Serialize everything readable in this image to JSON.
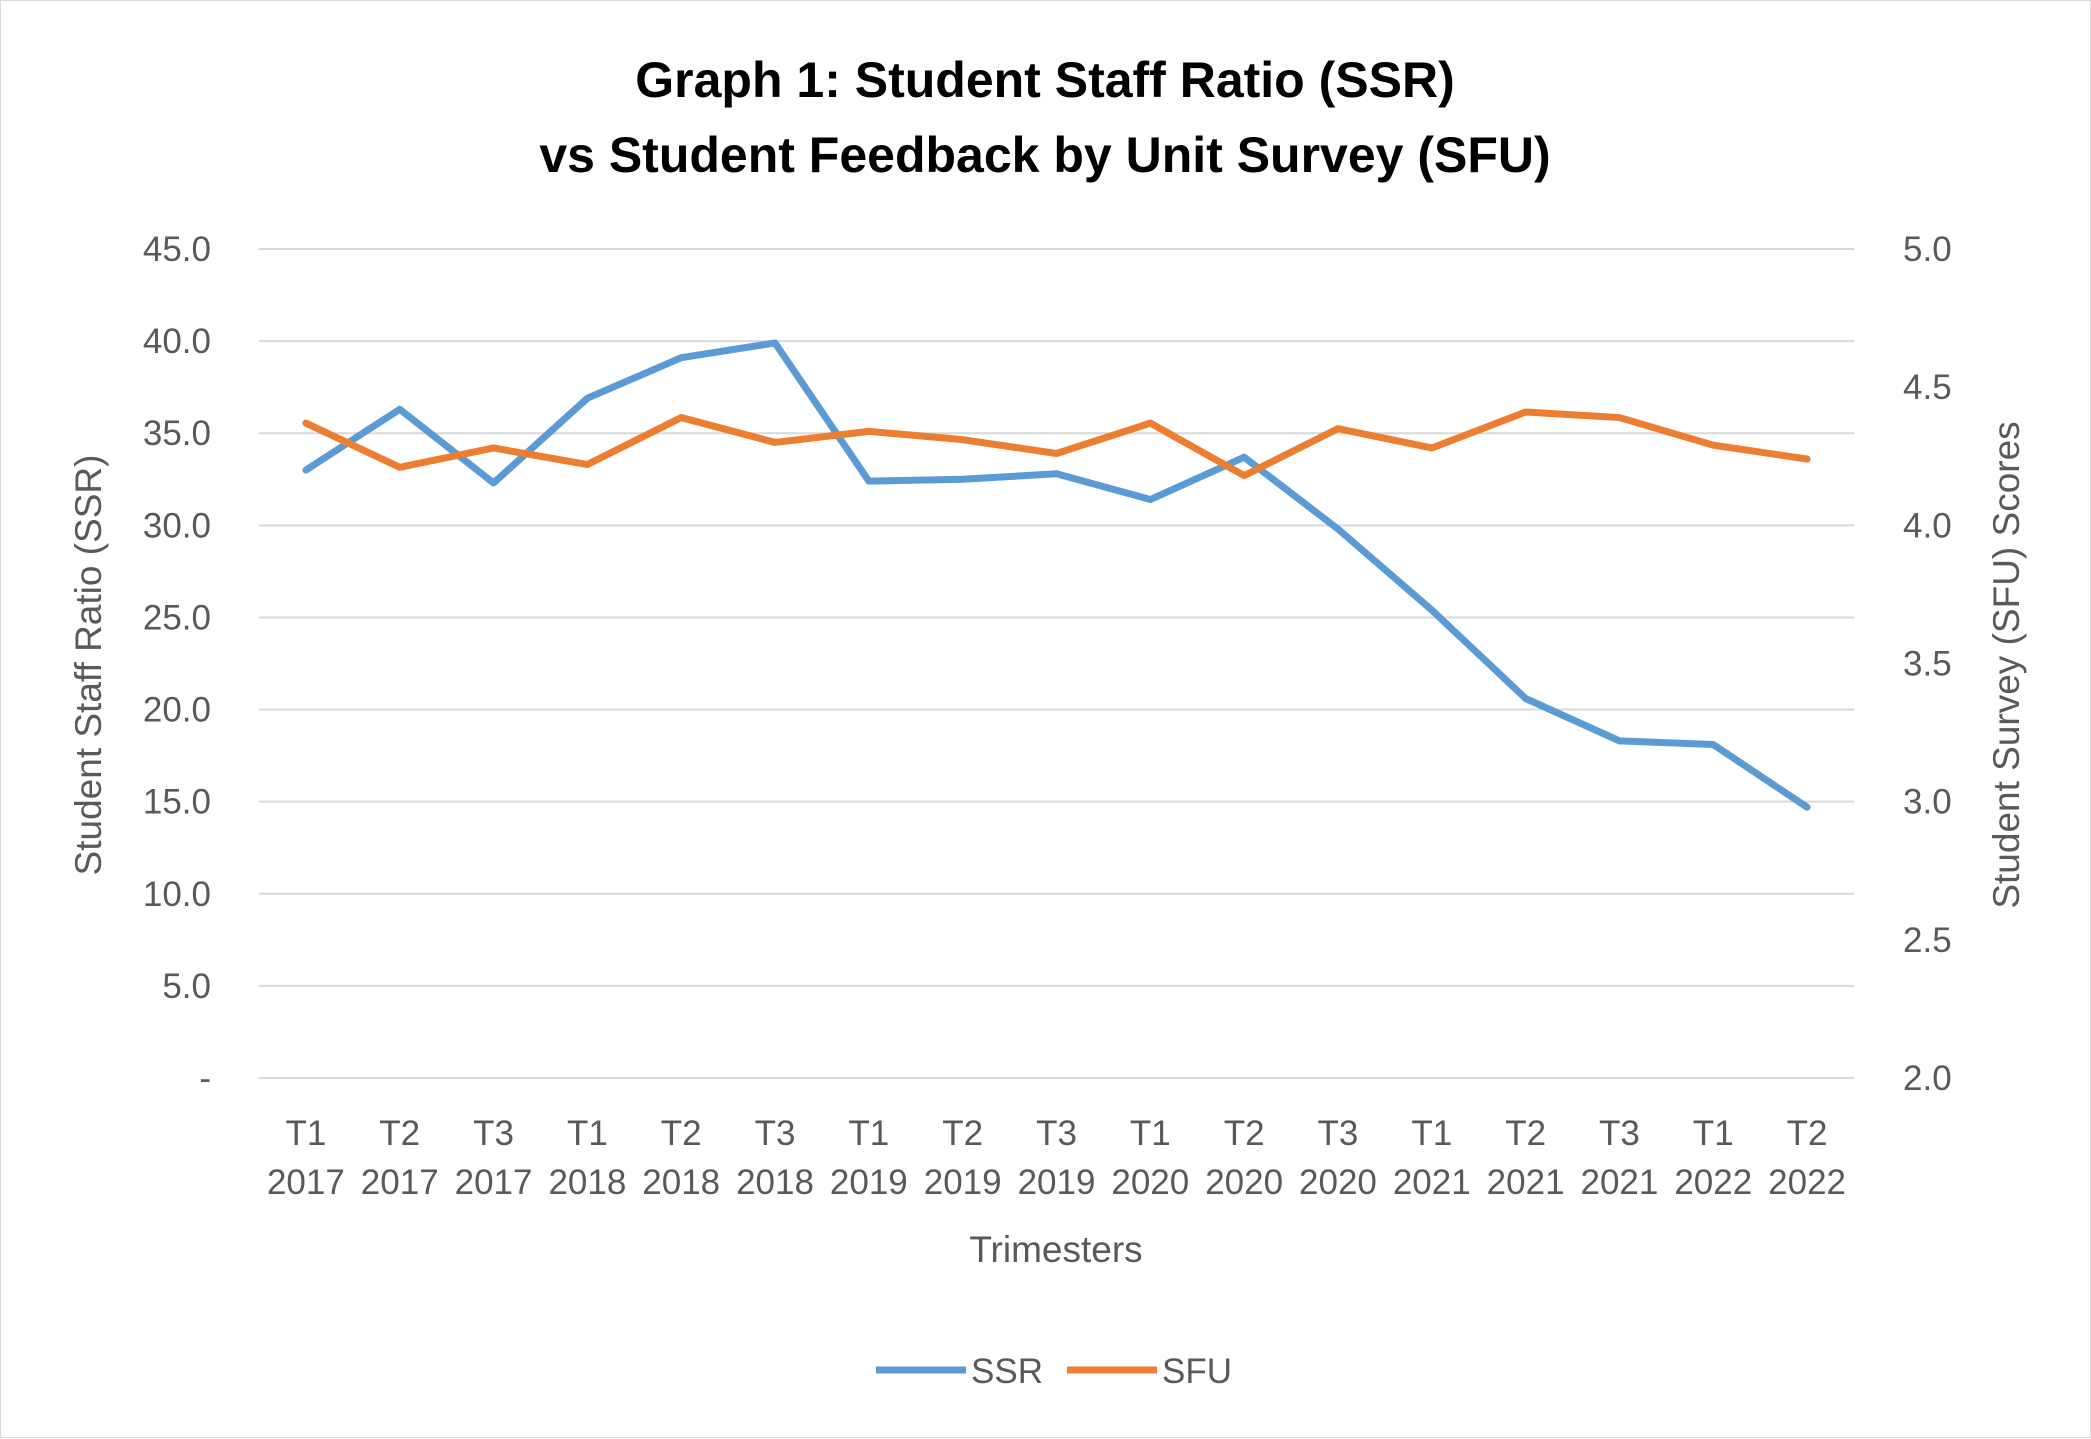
{
  "chart_data": {
    "type": "line",
    "title_lines": [
      "Graph 1: Student Staff Ratio (SSR)",
      "vs Student Feedback by Unit Survey (SFU)"
    ],
    "xlabel": "Trimesters",
    "ylabel_left": "Student Staff Ratio (SSR)",
    "ylabel_right": "Student Survey (SFU) Scores",
    "categories": [
      [
        "T1",
        "2017"
      ],
      [
        "T2",
        "2017"
      ],
      [
        "T3",
        "2017"
      ],
      [
        "T1",
        "2018"
      ],
      [
        "T2",
        "2018"
      ],
      [
        "T3",
        "2018"
      ],
      [
        "T1",
        "2019"
      ],
      [
        "T2",
        "2019"
      ],
      [
        "T3",
        "2019"
      ],
      [
        "T1",
        "2020"
      ],
      [
        "T2",
        "2020"
      ],
      [
        "T3",
        "2020"
      ],
      [
        "T1",
        "2021"
      ],
      [
        "T2",
        "2021"
      ],
      [
        "T3",
        "2021"
      ],
      [
        "T1",
        "2022"
      ],
      [
        "T2",
        "2022"
      ]
    ],
    "y_left": {
      "min": 0,
      "max": 45,
      "step": 5,
      "tick_labels": [
        "-",
        "5.0",
        "10.0",
        "15.0",
        "20.0",
        "25.0",
        "30.0",
        "35.0",
        "40.0",
        "45.0"
      ]
    },
    "y_right": {
      "min": 2.0,
      "max": 5.0,
      "step": 0.5,
      "tick_labels": [
        "2.0",
        "2.5",
        "3.0",
        "3.5",
        "4.0",
        "4.5",
        "5.0"
      ]
    },
    "series": [
      {
        "name": "SSR",
        "axis": "left",
        "color": "#5b9bd5",
        "values": [
          33.0,
          36.3,
          32.3,
          36.9,
          39.1,
          39.9,
          32.4,
          32.5,
          32.8,
          31.4,
          33.7,
          29.8,
          25.4,
          20.6,
          18.3,
          18.1,
          14.7
        ]
      },
      {
        "name": "SFU",
        "axis": "right",
        "color": "#ed7d31",
        "values": [
          4.37,
          4.21,
          4.28,
          4.22,
          4.39,
          4.3,
          4.34,
          4.31,
          4.26,
          4.37,
          4.18,
          4.35,
          4.28,
          4.41,
          4.39,
          4.29,
          4.24
        ]
      }
    ],
    "grid": true,
    "legend_position": "bottom"
  }
}
